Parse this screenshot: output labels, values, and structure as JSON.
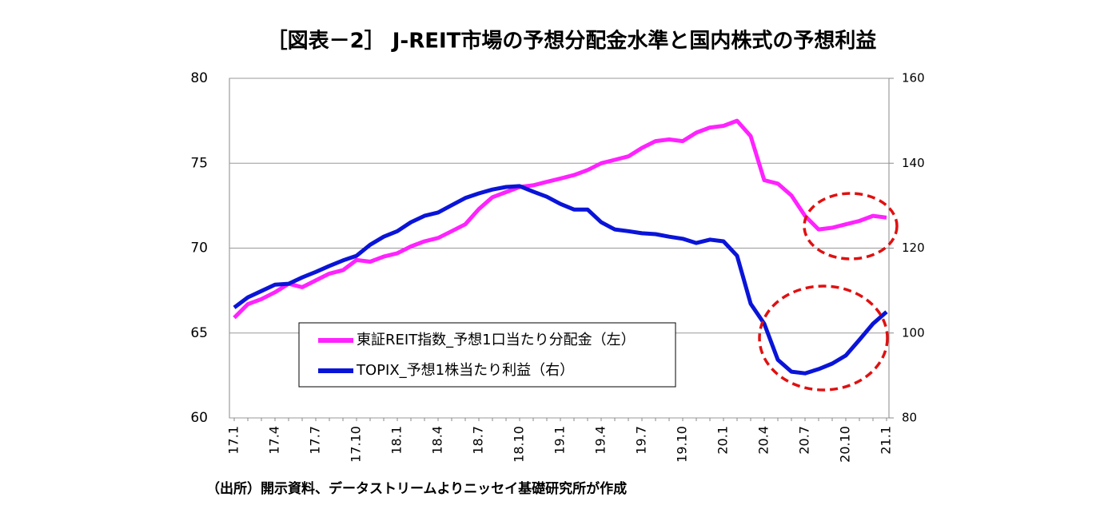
{
  "chart_data": {
    "type": "line",
    "title": "［図表－2］ J-REIT市場の予想分配金水準と国内株式の予想利益",
    "source": "（出所）開示資料、データストリームよりニッセイ基礎研究所が作成",
    "categories": [
      "17.1",
      null,
      null,
      "17.4",
      null,
      null,
      "17.7",
      null,
      null,
      "17.10",
      null,
      null,
      "18.1",
      null,
      null,
      "18.4",
      null,
      null,
      "18.7",
      null,
      null,
      "18.10",
      null,
      null,
      "19.1",
      null,
      null,
      "19.4",
      null,
      null,
      "19.7",
      null,
      null,
      "19.10",
      null,
      null,
      "20.1",
      null,
      null,
      "20.4",
      null,
      null,
      "20.7",
      null,
      null,
      "20.10",
      null,
      null,
      "21.1"
    ],
    "series": [
      {
        "name": "東証REIT指数_予想1口当たり分配金（左）",
        "color": "#ff22ff",
        "axis": "y",
        "values": [
          65.9,
          66.7,
          67.0,
          67.4,
          67.9,
          67.7,
          68.1,
          68.5,
          68.7,
          69.3,
          69.2,
          69.5,
          69.7,
          70.1,
          70.4,
          70.6,
          71.0,
          71.4,
          72.3,
          73.0,
          73.3,
          73.6,
          73.7,
          73.9,
          74.1,
          74.3,
          74.6,
          75.0,
          75.2,
          75.4,
          75.9,
          76.3,
          76.4,
          76.3,
          76.8,
          77.1,
          77.2,
          77.5,
          76.6,
          74.0,
          73.8,
          73.1,
          71.9,
          71.1,
          71.2,
          71.4,
          71.6,
          71.9,
          71.8
        ]
      },
      {
        "name": "TOPIX_予想1株当たり利益（右）",
        "color": "#0a14d8",
        "axis": "y2",
        "values": [
          106.0,
          108.4,
          109.9,
          111.4,
          111.6,
          113.1,
          114.4,
          115.8,
          117.1,
          118.2,
          120.8,
          122.7,
          124.0,
          126.1,
          127.6,
          128.4,
          130.1,
          131.8,
          132.9,
          133.8,
          134.4,
          134.6,
          133.3,
          132.1,
          130.4,
          129.1,
          129.1,
          126.1,
          124.4,
          124.0,
          123.5,
          123.3,
          122.7,
          122.2,
          121.2,
          122.0,
          121.6,
          118.2,
          106.9,
          102.2,
          93.7,
          90.9,
          90.5,
          91.5,
          92.8,
          94.7,
          98.4,
          102.2,
          105.0
        ]
      }
    ],
    "ylim": [
      60,
      80
    ],
    "yticks": [
      60,
      65,
      70,
      75,
      80
    ],
    "y2lim": [
      80,
      160
    ],
    "y2ticks": [
      80,
      100,
      120,
      140,
      160
    ],
    "grid": true
  }
}
